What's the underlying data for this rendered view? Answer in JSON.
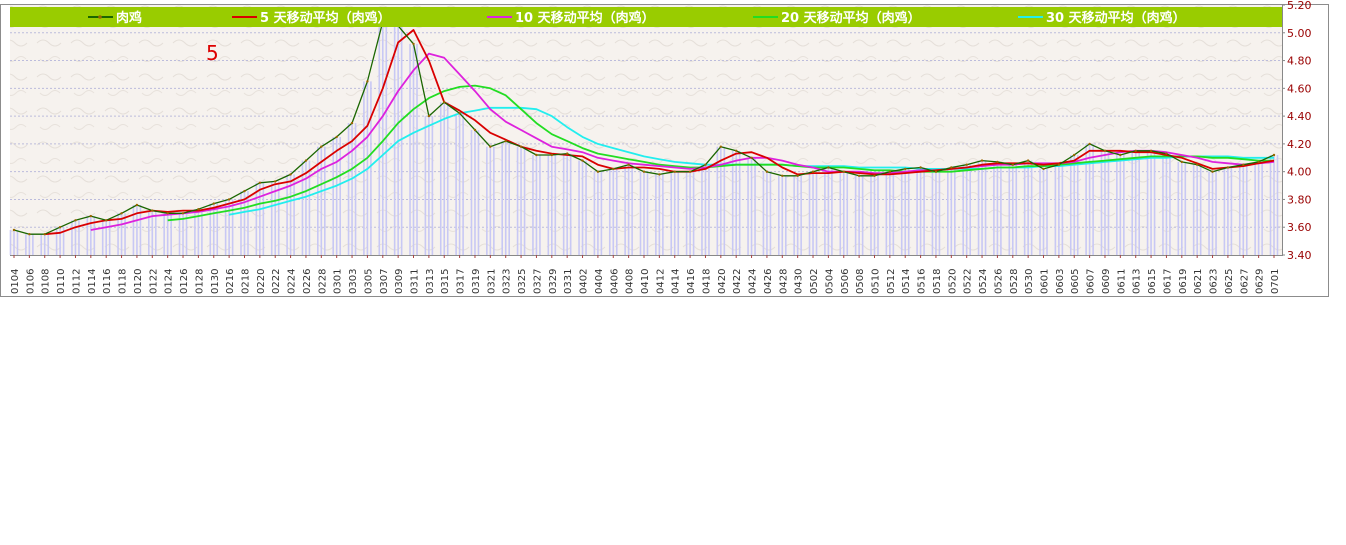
{
  "chart_data": {
    "type": "line",
    "title": "",
    "xlabel": "",
    "ylabel": "",
    "ylim": [
      3.4,
      5.2
    ],
    "y_ticks": [
      "3.40",
      "3.60",
      "3.80",
      "4.00",
      "4.20",
      "4.40",
      "4.60",
      "4.80",
      "5.00",
      "5.20"
    ],
    "y_axis_side": "right",
    "grid": true,
    "legend_position": "top",
    "annotation": "5",
    "x_labels": [
      "0104",
      "0106",
      "0108",
      "0110",
      "0112",
      "0114",
      "0116",
      "0118",
      "0120",
      "0122",
      "0124",
      "0126",
      "0128",
      "0130",
      "0216",
      "0218",
      "0220",
      "0222",
      "0224",
      "0226",
      "0228",
      "0301",
      "0303",
      "0305",
      "0307",
      "0309",
      "0311",
      "0313",
      "0315",
      "0317",
      "0319",
      "0321",
      "0323",
      "0325",
      "0327",
      "0329",
      "0331",
      "0402",
      "0404",
      "0406",
      "0408",
      "0410",
      "0412",
      "0414",
      "0416",
      "0418",
      "0420",
      "0422",
      "0424",
      "0426",
      "0428",
      "0430",
      "0502",
      "0504",
      "0506",
      "0508",
      "0510",
      "0512",
      "0514",
      "0516",
      "0518",
      "0520",
      "0522",
      "0524",
      "0526",
      "0528",
      "0530",
      "0601",
      "0603",
      "0605",
      "0607",
      "0609",
      "0611",
      "0613",
      "0615",
      "0617",
      "0619",
      "0621",
      "0623",
      "0625",
      "0627",
      "0629",
      "0701"
    ],
    "colors": {
      "legend_band": "#99cc00",
      "price": "#1a6600",
      "ma5": "#d90000",
      "ma10": "#dd22dd",
      "ma20": "#22dd22",
      "ma30": "#22eeee",
      "bars": "#c8c8f4",
      "axis_text": "#990000",
      "annotation": "#dd0000"
    },
    "series": [
      {
        "name": "肉鸡",
        "key": "price",
        "values": [
          3.58,
          3.55,
          3.55,
          3.6,
          3.65,
          3.68,
          3.65,
          3.7,
          3.76,
          3.72,
          3.7,
          3.7,
          3.73,
          3.77,
          3.8,
          3.86,
          3.92,
          3.93,
          3.98,
          4.08,
          4.18,
          4.25,
          4.35,
          4.65,
          5.08,
          5.05,
          4.92,
          4.4,
          4.5,
          4.42,
          4.3,
          4.18,
          4.22,
          4.18,
          4.12,
          4.12,
          4.13,
          4.08,
          4.0,
          4.02,
          4.05,
          4.0,
          3.98,
          4.0,
          4.0,
          4.05,
          4.18,
          4.15,
          4.1,
          4.0,
          3.97,
          3.97,
          4.0,
          4.03,
          4.0,
          3.97,
          3.97,
          4.0,
          4.02,
          4.03,
          4.0,
          4.03,
          4.05,
          4.08,
          4.07,
          4.05,
          4.08,
          4.02,
          4.05,
          4.12,
          4.2,
          4.15,
          4.12,
          4.15,
          4.15,
          4.13,
          4.07,
          4.05,
          4.0,
          4.03,
          4.05,
          4.07,
          4.12
        ]
      },
      {
        "name": "5 天移动平均（肉鸡）",
        "key": "ma5",
        "values": [
          null,
          null,
          3.55,
          3.56,
          3.6,
          3.63,
          3.65,
          3.66,
          3.7,
          3.72,
          3.71,
          3.72,
          3.72,
          3.74,
          3.77,
          3.8,
          3.87,
          3.91,
          3.93,
          3.99,
          4.07,
          4.15,
          4.22,
          4.33,
          4.6,
          4.93,
          5.02,
          4.8,
          4.5,
          4.44,
          4.37,
          4.28,
          4.23,
          4.18,
          4.15,
          4.13,
          4.12,
          4.11,
          4.05,
          4.02,
          4.03,
          4.03,
          4.02,
          4.0,
          4.0,
          4.02,
          4.08,
          4.13,
          4.14,
          4.1,
          4.03,
          3.98,
          3.99,
          3.99,
          4.0,
          3.99,
          3.98,
          3.98,
          3.99,
          4.0,
          4.01,
          4.02,
          4.03,
          4.05,
          4.06,
          4.06,
          4.06,
          4.05,
          4.06,
          4.08,
          4.15,
          4.15,
          4.15,
          4.14,
          4.14,
          4.12,
          4.1,
          4.06,
          4.02,
          4.03,
          4.04,
          4.06,
          4.08
        ]
      },
      {
        "name": "10 天移动平均（肉鸡）",
        "key": "ma10",
        "values": [
          null,
          null,
          null,
          null,
          null,
          3.58,
          3.6,
          3.62,
          3.65,
          3.68,
          3.69,
          3.7,
          3.71,
          3.73,
          3.75,
          3.78,
          3.82,
          3.86,
          3.9,
          3.95,
          4.02,
          4.07,
          4.15,
          4.25,
          4.4,
          4.58,
          4.73,
          4.85,
          4.82,
          4.7,
          4.58,
          4.45,
          4.36,
          4.3,
          4.24,
          4.18,
          4.16,
          4.14,
          4.1,
          4.08,
          4.06,
          4.05,
          4.04,
          4.03,
          4.02,
          4.03,
          4.05,
          4.08,
          4.1,
          4.1,
          4.08,
          4.05,
          4.03,
          4.0,
          4.0,
          4.0,
          3.99,
          3.99,
          4.0,
          4.01,
          4.01,
          4.02,
          4.03,
          4.04,
          4.05,
          4.05,
          4.06,
          4.06,
          4.06,
          4.07,
          4.1,
          4.12,
          4.14,
          4.15,
          4.15,
          4.14,
          4.12,
          4.1,
          4.07,
          4.06,
          4.05,
          4.06,
          4.07
        ]
      },
      {
        "name": "20 天移动平均（肉鸡）",
        "key": "ma20",
        "values": [
          null,
          null,
          null,
          null,
          null,
          null,
          null,
          null,
          null,
          null,
          3.65,
          3.66,
          3.68,
          3.7,
          3.72,
          3.74,
          3.77,
          3.79,
          3.82,
          3.86,
          3.91,
          3.96,
          4.02,
          4.1,
          4.22,
          4.35,
          4.45,
          4.53,
          4.58,
          4.61,
          4.62,
          4.6,
          4.55,
          4.45,
          4.35,
          4.27,
          4.22,
          4.17,
          4.13,
          4.11,
          4.09,
          4.07,
          4.05,
          4.04,
          4.03,
          4.03,
          4.04,
          4.05,
          4.05,
          4.05,
          4.05,
          4.04,
          4.03,
          4.03,
          4.03,
          4.02,
          4.01,
          4.01,
          4.0,
          4.0,
          4.0,
          4.0,
          4.01,
          4.02,
          4.03,
          4.03,
          4.04,
          4.04,
          4.05,
          4.06,
          4.07,
          4.08,
          4.09,
          4.1,
          4.11,
          4.11,
          4.11,
          4.11,
          4.1,
          4.1,
          4.09,
          4.08,
          4.08
        ]
      },
      {
        "name": "30 天移动平均（肉鸡）",
        "key": "ma30",
        "values": [
          null,
          null,
          null,
          null,
          null,
          null,
          null,
          null,
          null,
          null,
          null,
          null,
          null,
          null,
          3.69,
          3.71,
          3.73,
          3.76,
          3.79,
          3.82,
          3.86,
          3.9,
          3.95,
          4.02,
          4.12,
          4.22,
          4.28,
          4.33,
          4.38,
          4.42,
          4.44,
          4.46,
          4.46,
          4.46,
          4.45,
          4.4,
          4.32,
          4.25,
          4.2,
          4.17,
          4.14,
          4.11,
          4.09,
          4.07,
          4.06,
          4.05,
          4.05,
          4.05,
          4.05,
          4.05,
          4.05,
          4.04,
          4.04,
          4.04,
          4.04,
          4.03,
          4.03,
          4.03,
          4.03,
          4.02,
          4.02,
          4.02,
          4.02,
          4.02,
          4.03,
          4.03,
          4.03,
          4.04,
          4.04,
          4.05,
          4.06,
          4.07,
          4.08,
          4.09,
          4.1,
          4.1,
          4.11,
          4.11,
          4.11,
          4.11,
          4.1,
          4.1,
          4.1
        ]
      }
    ]
  }
}
